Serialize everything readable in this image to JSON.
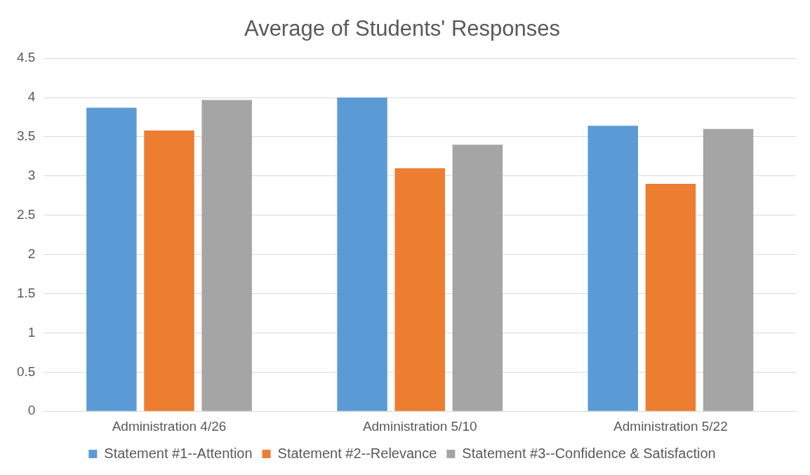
{
  "chart_data": {
    "type": "bar",
    "title": "Average of Students' Responses",
    "categories": [
      "Administration 4/26",
      "Administration 5/10",
      "Administration 5/22"
    ],
    "series": [
      {
        "name": "Statement #1--Attention",
        "color": "#5b9bd5",
        "values": [
          3.87,
          4.0,
          3.64
        ]
      },
      {
        "name": "Statement #2--Relevance",
        "color": "#ed7d31",
        "values": [
          3.58,
          3.1,
          2.9
        ]
      },
      {
        "name": "Statement #3--Confidence & Satisfaction",
        "color": "#a5a5a5",
        "values": [
          3.97,
          3.4,
          3.6
        ]
      }
    ],
    "ylim": [
      0,
      4.5
    ],
    "yticks": [
      0,
      0.5,
      1,
      1.5,
      2,
      2.5,
      3,
      3.5,
      4,
      4.5
    ],
    "grid": "y",
    "legend": "bottom"
  }
}
